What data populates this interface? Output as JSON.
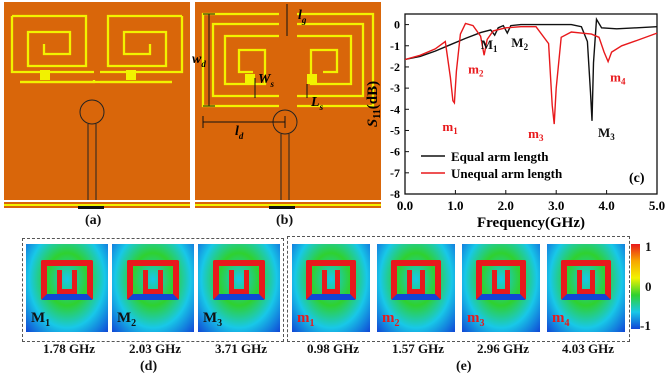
{
  "panels": {
    "a": "(a)",
    "b": "(b)",
    "c": "(c)",
    "d": "(d)",
    "e": "(e)"
  },
  "dims": {
    "lg": "l",
    "lg_sub": "g",
    "wd": "w",
    "wd_sub": "d",
    "ws": "W",
    "ws_sub": "s",
    "ls": "L",
    "ls_sub": "s",
    "ld": "l",
    "ld_sub": "d"
  },
  "chart_data": {
    "type": "line",
    "xlabel": "Frequency(GHz)",
    "ylabel": "S",
    "ylabel_sub": "11",
    "ylabel_unit": "(dB)",
    "xlim": [
      0,
      5
    ],
    "ylim": [
      -8,
      0.5
    ],
    "xticks": [
      "0.0",
      "1.0",
      "2.0",
      "3.0",
      "4.0",
      "5.0"
    ],
    "yticks": [
      "0",
      "-1",
      "-2",
      "-3",
      "-4",
      "-5",
      "-6",
      "-7",
      "-8"
    ],
    "legend": [
      "Equal arm length",
      "Unequal arm length"
    ],
    "legend_position": "bottom-right",
    "series": [
      {
        "name": "Equal arm length",
        "color": "#111111",
        "x": [
          0,
          0.3,
          0.6,
          0.9,
          1.2,
          1.5,
          1.7,
          1.78,
          1.85,
          1.95,
          2.03,
          2.1,
          2.3,
          2.6,
          3.0,
          3.3,
          3.5,
          3.62,
          3.68,
          3.71,
          3.74,
          3.8,
          3.9,
          4.2,
          4.6,
          5.0
        ],
        "y": [
          -1.65,
          -1.5,
          -1.25,
          -0.95,
          -0.65,
          -0.38,
          -0.25,
          -0.5,
          -0.15,
          -0.05,
          -0.4,
          -0.05,
          0,
          0,
          0,
          0,
          -0.1,
          -0.8,
          -3.2,
          -4.55,
          -1.8,
          0.25,
          -0.15,
          -0.2,
          -0.15,
          -0.1
        ]
      },
      {
        "name": "Unequal arm length",
        "color": "#e8191c",
        "x": [
          0,
          0.3,
          0.6,
          0.8,
          0.9,
          0.95,
          0.98,
          1.02,
          1.1,
          1.2,
          1.35,
          1.5,
          1.57,
          1.63,
          1.75,
          2.0,
          2.3,
          2.6,
          2.85,
          2.92,
          2.96,
          3.0,
          3.1,
          3.3,
          3.5,
          3.7,
          3.85,
          3.95,
          4.03,
          4.1,
          4.3,
          4.6,
          5.0
        ],
        "y": [
          -1.65,
          -1.45,
          -1.15,
          -0.8,
          -2.5,
          -3.6,
          -3.7,
          -2.2,
          -0.45,
          0.05,
          -0.05,
          -0.55,
          -1.45,
          -0.7,
          -0.3,
          -0.15,
          -0.1,
          -0.1,
          -0.9,
          -3.8,
          -4.7,
          -3.0,
          -0.6,
          -0.35,
          -0.4,
          -0.45,
          -0.6,
          -1.3,
          -1.75,
          -1.3,
          -1.0,
          -0.75,
          -0.4
        ]
      }
    ],
    "annotations": [
      {
        "text": "m",
        "sub": "1",
        "color": "#e8191c",
        "x": 0.98,
        "y": -3.7
      },
      {
        "text": "m",
        "sub": "2",
        "color": "#e8191c",
        "x": 1.57,
        "y": -1.45
      },
      {
        "text": "M",
        "sub": "1",
        "color": "#111111",
        "x": 1.78,
        "y": -0.5
      },
      {
        "text": "M",
        "sub": "2",
        "color": "#111111",
        "x": 2.03,
        "y": -0.4
      },
      {
        "text": "m",
        "sub": "3",
        "color": "#e8191c",
        "x": 2.96,
        "y": -4.7
      },
      {
        "text": "M",
        "sub": "3",
        "color": "#111111",
        "x": 3.71,
        "y": -4.55
      },
      {
        "text": "m",
        "sub": "4",
        "color": "#e8191c",
        "x": 4.03,
        "y": -1.75
      }
    ]
  },
  "field_maps_d": [
    {
      "mode": "M",
      "sub": "1",
      "freq": "1.78 GHz"
    },
    {
      "mode": "M",
      "sub": "2",
      "freq": "2.03 GHz"
    },
    {
      "mode": "M",
      "sub": "3",
      "freq": "3.71 GHz"
    }
  ],
  "field_maps_e": [
    {
      "mode": "m",
      "sub": "1",
      "freq": "0.98 GHz"
    },
    {
      "mode": "m",
      "sub": "2",
      "freq": "1.57 GHz"
    },
    {
      "mode": "m",
      "sub": "3",
      "freq": "2.96 GHz"
    },
    {
      "mode": "m",
      "sub": "4",
      "freq": "4.03 GHz"
    }
  ],
  "colorbar": {
    "ticks": [
      "1",
      "0",
      "-1"
    ],
    "colors": [
      "#e8191c",
      "#f7a600",
      "#f2f200",
      "#2fd12f",
      "#18c8e8",
      "#1046d6"
    ]
  }
}
